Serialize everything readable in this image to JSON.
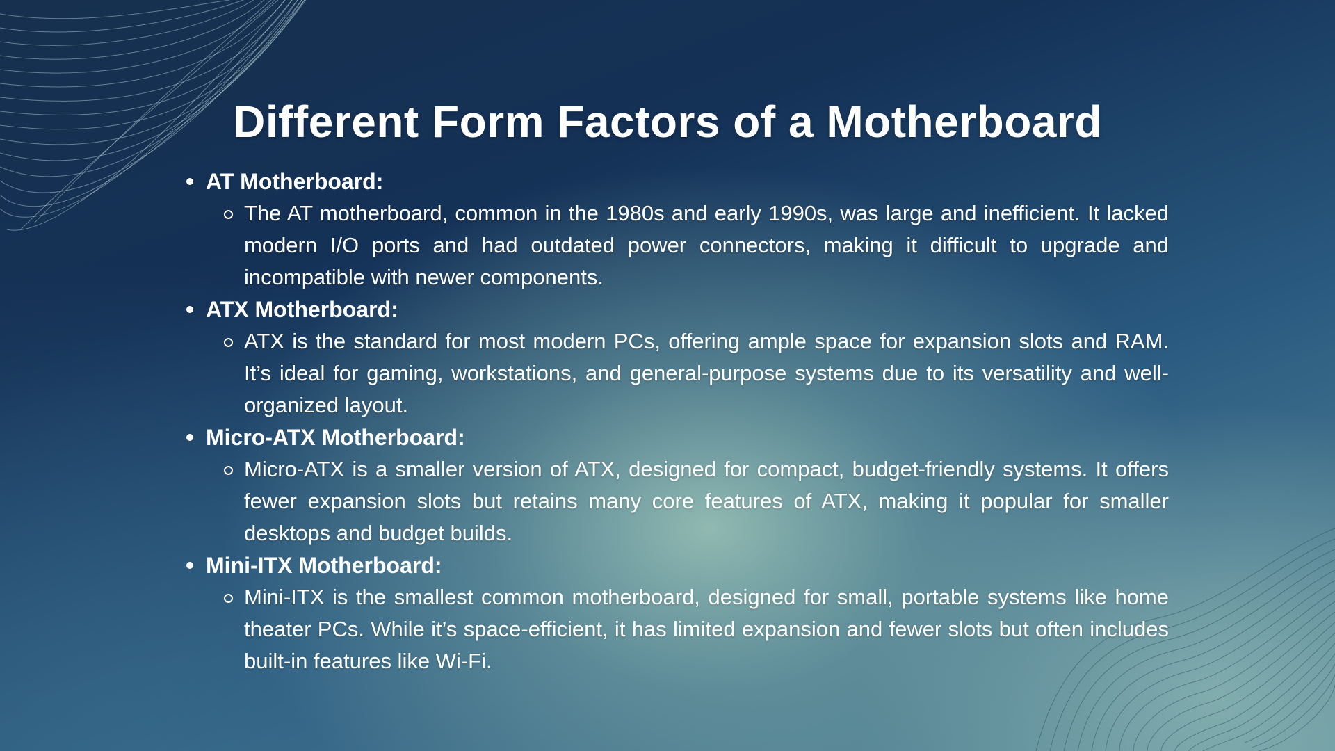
{
  "slide": {
    "title": "Different Form Factors of a Motherboard",
    "sections": [
      {
        "heading": "AT Motherboard:",
        "text": "The AT motherboard, common in the 1980s and early 1990s, was large and inefficient. It lacked modern I/O ports and had outdated power connectors, making it difficult to upgrade and incompatible with newer components."
      },
      {
        "heading": "ATX Motherboard:",
        "text": "ATX is the standard for most modern PCs, offering ample space for expansion slots and RAM. It’s ideal for gaming, workstations, and general-purpose systems due to its versatility and well-organized layout."
      },
      {
        "heading": "Micro-ATX Motherboard:",
        "text": "Micro-ATX is a smaller version of ATX, designed for compact, budget-friendly systems. It offers fewer expansion slots but retains many core features of ATX, making it popular for smaller desktops and budget builds."
      },
      {
        "heading": "Mini-ITX Motherboard:",
        "text": "Mini-ITX is the smallest common motherboard, designed for small, portable systems like home theater PCs. While it’s space-efficient, it has limited expansion and fewer slots but often includes built-in features like Wi-Fi."
      }
    ]
  },
  "colors": {
    "text": "#ffffff",
    "background_dark": "#143156",
    "background_light": "#8fb5ad"
  }
}
